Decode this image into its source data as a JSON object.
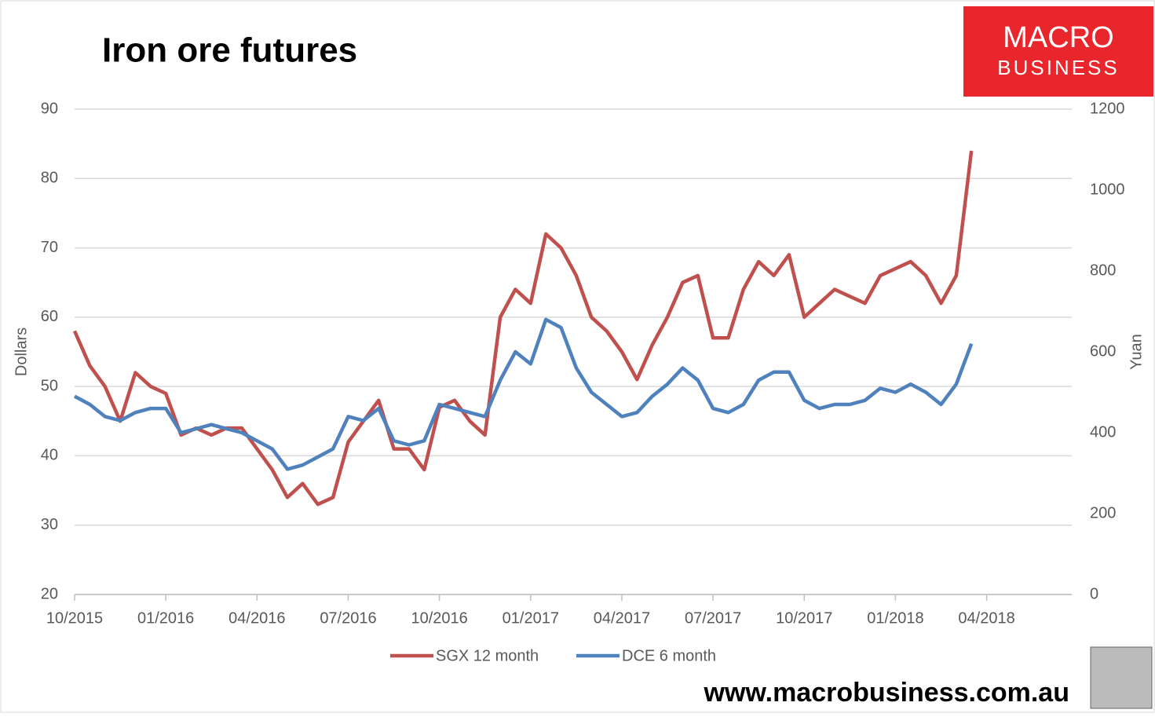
{
  "chart_data": {
    "type": "line",
    "title": "Iron ore futures",
    "ylabel": "Dollars",
    "y2label": "Yuan",
    "annotations": [
      "MACRO",
      "BUSINESS",
      "www.macrobusiness.com.au"
    ],
    "categories": [
      "10/2015",
      null,
      null,
      null,
      null,
      null,
      "01/2016",
      null,
      null,
      null,
      null,
      null,
      "04/2016",
      null,
      null,
      null,
      null,
      null,
      "07/2016",
      null,
      null,
      null,
      null,
      null,
      "10/2016",
      null,
      null,
      null,
      null,
      null,
      "01/2017",
      null,
      null,
      null,
      null,
      null,
      "04/2017",
      null,
      null,
      null,
      null,
      null,
      "07/2017",
      null,
      null,
      null,
      null,
      null,
      "10/2017",
      null,
      null,
      null,
      null,
      null,
      "01/2018",
      null,
      null,
      null,
      null,
      null,
      "04/2018",
      null,
      null,
      null,
      null,
      null
    ],
    "series": [
      {
        "name": "SGX 12 month",
        "color": "#c0504d",
        "axis": "y",
        "values": [
          58,
          53,
          50,
          45,
          52,
          50,
          49,
          43,
          44,
          43,
          44,
          44,
          41,
          38,
          34,
          36,
          33,
          34,
          42,
          45,
          48,
          41,
          41,
          38,
          47,
          48,
          45,
          43,
          60,
          64,
          62,
          72,
          70,
          66,
          60,
          58,
          55,
          51,
          56,
          60,
          65,
          66,
          57,
          57,
          64,
          68,
          66,
          69,
          60,
          62,
          64,
          63,
          62,
          66,
          67,
          68,
          66,
          62,
          66,
          84,
          null,
          null,
          null,
          null,
          null,
          null
        ]
      },
      {
        "name": "DCE 6 month",
        "color": "#4f81bd",
        "axis": "y2",
        "values": [
          490,
          470,
          440,
          430,
          450,
          460,
          460,
          400,
          410,
          420,
          410,
          400,
          380,
          360,
          310,
          320,
          340,
          360,
          440,
          430,
          460,
          380,
          370,
          380,
          470,
          460,
          450,
          440,
          530,
          600,
          570,
          680,
          660,
          560,
          500,
          470,
          440,
          450,
          490,
          520,
          560,
          530,
          460,
          450,
          470,
          530,
          550,
          550,
          480,
          460,
          470,
          470,
          480,
          510,
          500,
          520,
          500,
          470,
          520,
          620,
          null,
          null,
          null,
          null,
          null,
          null
        ]
      }
    ],
    "ylim": [
      20,
      90
    ],
    "yticks": [
      20,
      30,
      40,
      50,
      60,
      70,
      80,
      90
    ],
    "y2lim": [
      0,
      1200
    ],
    "y2ticks": [
      0,
      200,
      400,
      600,
      800,
      1000,
      1200
    ],
    "grid": true,
    "legend": "bottom"
  }
}
